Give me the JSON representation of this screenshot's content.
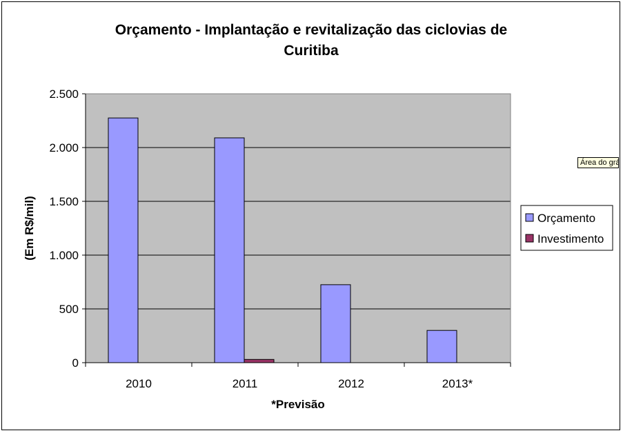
{
  "chart_data": {
    "type": "bar",
    "title": "Orçamento - Implantação e revitalização das ciclovias de Curitiba",
    "title_lines": [
      "Orçamento - Implantação e revitalização das ciclovias de",
      "Curitiba"
    ],
    "xlabel": "*Previsão",
    "ylabel": "(Em R$/mil)",
    "categories": [
      "2010",
      "2011",
      "2012",
      "2013*"
    ],
    "series": [
      {
        "name": "Orçamento",
        "color": "#9999ff",
        "values": [
          2275,
          2090,
          725,
          300
        ]
      },
      {
        "name": "Investimento",
        "color": "#993366",
        "values": [
          0,
          30,
          0,
          0
        ]
      }
    ],
    "ylim": [
      0,
      2500
    ],
    "yticks": [
      0,
      500,
      1000,
      1500,
      2000,
      2500
    ],
    "ytick_labels": [
      "0",
      "500",
      "1.000",
      "1.500",
      "2.000",
      "2.500"
    ],
    "grid": true,
    "plot_background": "#c0c0c0",
    "legend_position": "right"
  },
  "tooltip": {
    "text": "Área do gráfi"
  }
}
